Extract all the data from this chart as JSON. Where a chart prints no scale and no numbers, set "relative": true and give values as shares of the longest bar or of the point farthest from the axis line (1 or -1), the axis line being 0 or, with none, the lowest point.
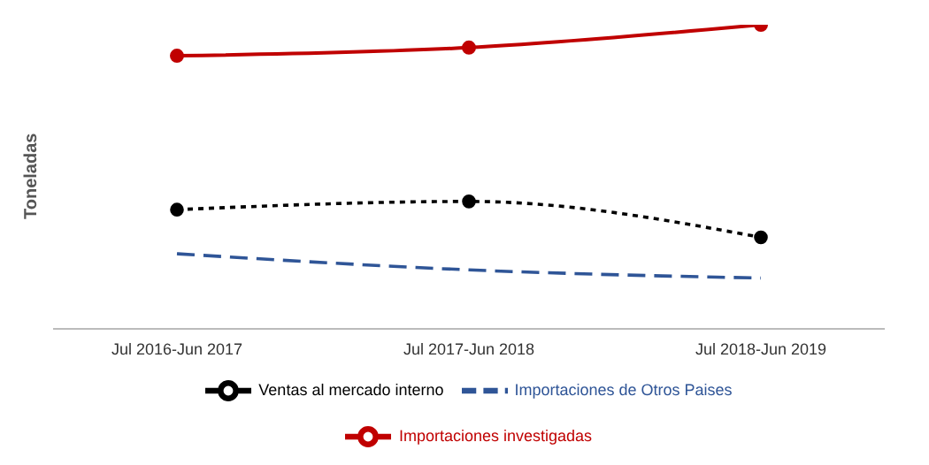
{
  "chart_data": {
    "type": "line",
    "relative": true,
    "ylabel": "Toneladas",
    "categories": [
      "Jul 2016-Jun 2017",
      "Jul 2017-Jun 2018",
      "Jul 2018-Jun 2019"
    ],
    "legend": "bottom",
    "grid": false,
    "series": [
      {
        "name": "Ventas al mercado interno",
        "color": "#000000",
        "values": [
          0.392,
          0.419,
          0.301
        ],
        "marker": "circle",
        "line_style": "dotted"
      },
      {
        "name": "Importaciones de Otros Paises",
        "color": "#2f5597",
        "values": [
          0.247,
          0.194,
          0.167
        ],
        "marker": "none",
        "line_style": "dashed"
      },
      {
        "name": "Importaciones investigadas",
        "color": "#c00000",
        "values": [
          0.898,
          0.925,
          1
        ],
        "marker": "circle",
        "line_style": "solid"
      }
    ]
  }
}
